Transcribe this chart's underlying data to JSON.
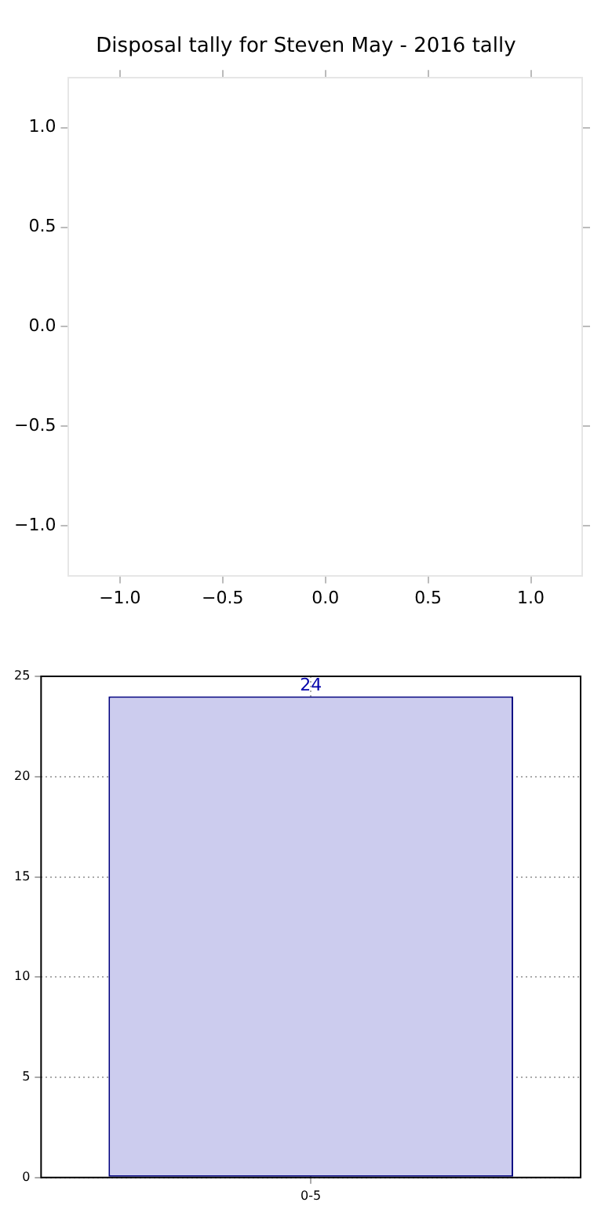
{
  "chart_data": [
    {
      "type": "scatter",
      "title": "Disposal tally for Steven May - 2016 tally",
      "xlim": [
        -1.25,
        1.25
      ],
      "xticks": [
        {
          "value": -1,
          "label": "−1.0"
        },
        {
          "value": -0.5,
          "label": "−0.5"
        },
        {
          "value": 0,
          "label": "0.0"
        },
        {
          "value": 0.5,
          "label": "0.5"
        },
        {
          "value": 1,
          "label": "1.0"
        }
      ],
      "ylim": [
        -1.25,
        1.25
      ],
      "yticks": [
        {
          "value": -1,
          "label": "−1.0"
        },
        {
          "value": -0.5,
          "label": "−0.5"
        },
        {
          "value": 0,
          "label": "0.0"
        },
        {
          "value": 0.5,
          "label": "0.5"
        },
        {
          "value": 1,
          "label": "1.0"
        }
      ],
      "grid": false
    },
    {
      "type": "bar",
      "categories": [
        "0-5"
      ],
      "values": [
        24
      ],
      "color": "#ccccee",
      "ylim": [
        0,
        25
      ],
      "yticks": [
        0,
        5,
        10,
        15,
        20,
        25
      ],
      "grid": true,
      "data_labels": true
    }
  ]
}
